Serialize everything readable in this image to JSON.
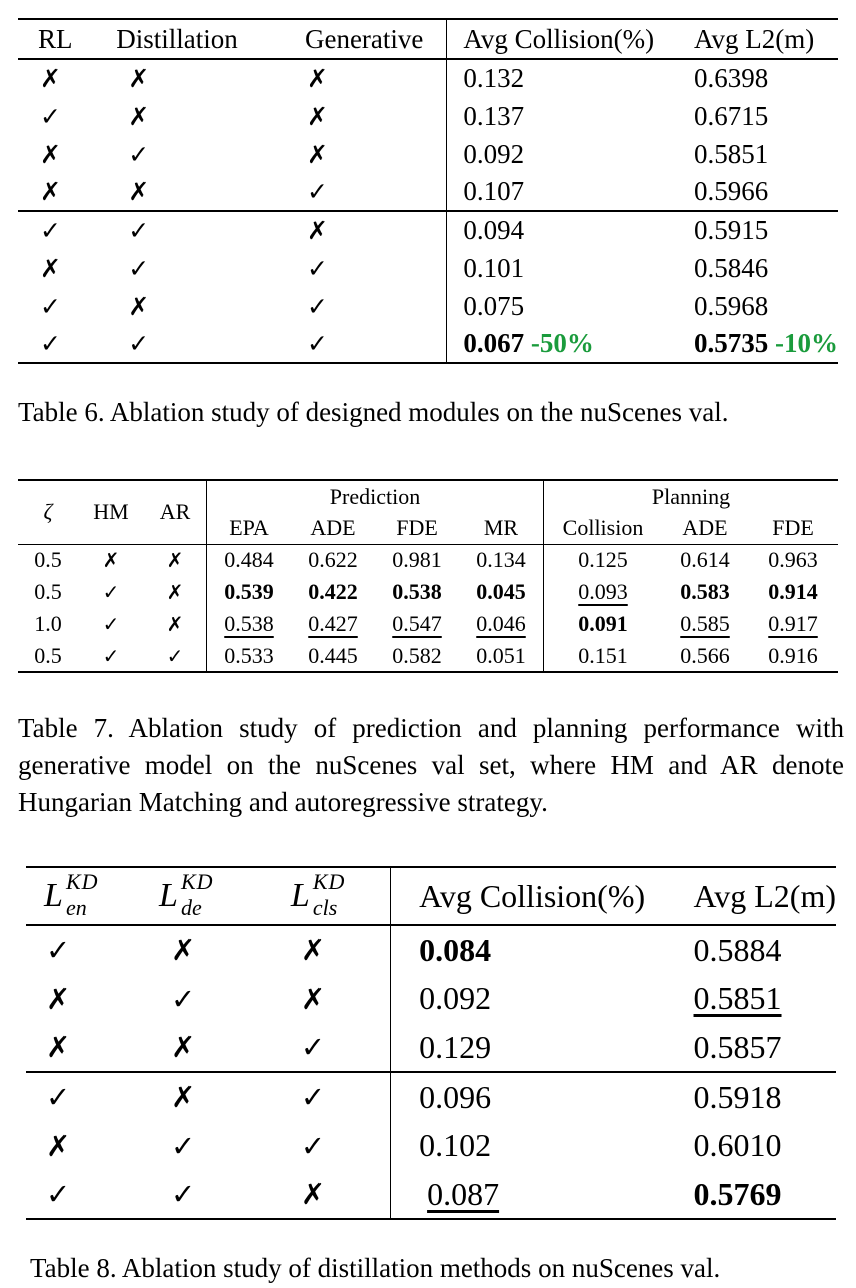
{
  "table6": {
    "headers": [
      "RL",
      "Distillation",
      "Generative",
      "Avg Collision(%)",
      "Avg L2(m)"
    ],
    "rows": [
      [
        "✗",
        "✗",
        "✗",
        "0.132",
        "0.6398"
      ],
      [
        "✓",
        "✗",
        "✗",
        "0.137",
        "0.6715"
      ],
      [
        "✗",
        "✓",
        "✗",
        "0.092",
        "0.5851"
      ],
      [
        "✗",
        "✗",
        "✓",
        "0.107",
        "0.5966"
      ],
      [
        "✓",
        "✓",
        "✗",
        "0.094",
        "0.5915"
      ],
      [
        "✗",
        "✓",
        "✓",
        "0.101",
        "0.5846"
      ],
      [
        "✓",
        "✗",
        "✓",
        "0.075",
        "0.5968"
      ],
      [
        "✓",
        "✓",
        "✓",
        "0.067",
        "0.5735"
      ]
    ],
    "final_collision_delta": "-50%",
    "final_l2_delta": "-10%",
    "highlight_color": "#1a9b3c",
    "caption": "Table 6. Ablation study of designed modules on the nuScenes val."
  },
  "table7": {
    "group_prediction": "Prediction",
    "group_planning": "Planning",
    "headers": [
      "ζ",
      "HM",
      "AR",
      "EPA",
      "ADE",
      "FDE",
      "MR",
      "Collision",
      "ADE",
      "FDE"
    ],
    "rows": [
      [
        "0.5",
        "✗",
        "✗",
        "0.484",
        "0.622",
        "0.981",
        "0.134",
        "0.125",
        "0.614",
        "0.963"
      ],
      [
        "0.5",
        "✓",
        "✗",
        "0.539",
        "0.422",
        "0.538",
        "0.045",
        "0.093",
        "0.583",
        "0.914"
      ],
      [
        "1.0",
        "✓",
        "✗",
        "0.538",
        "0.427",
        "0.547",
        "0.046",
        "0.091",
        "0.585",
        "0.917"
      ],
      [
        "0.5",
        "✓",
        "✓",
        "0.533",
        "0.445",
        "0.582",
        "0.051",
        "0.151",
        "0.566",
        "0.916"
      ]
    ],
    "caption": "Table 7. Ablation study of prediction and planning performance with generative model on the nuScenes val set, where HM and AR denote Hungarian Matching and autoregressive strategy."
  },
  "table8": {
    "header_L": "L",
    "header_sup": "KD",
    "header_subs": [
      "en",
      "de",
      "cls"
    ],
    "headers": [
      "Avg Collision(%)",
      "Avg L2(m)"
    ],
    "rows": [
      [
        "✓",
        "✗",
        "✗",
        "0.084",
        "0.5884"
      ],
      [
        "✗",
        "✓",
        "✗",
        "0.092",
        "0.5851"
      ],
      [
        "✗",
        "✗",
        "✓",
        "0.129",
        "0.5857"
      ],
      [
        "✓",
        "✗",
        "✓",
        "0.096",
        "0.5918"
      ],
      [
        "✗",
        "✓",
        "✓",
        "0.102",
        "0.6010"
      ],
      [
        "✓",
        "✓",
        "✗",
        "0.087",
        "0.5769"
      ]
    ],
    "caption": "Table 8. Ablation study of distillation methods on nuScenes val."
  }
}
